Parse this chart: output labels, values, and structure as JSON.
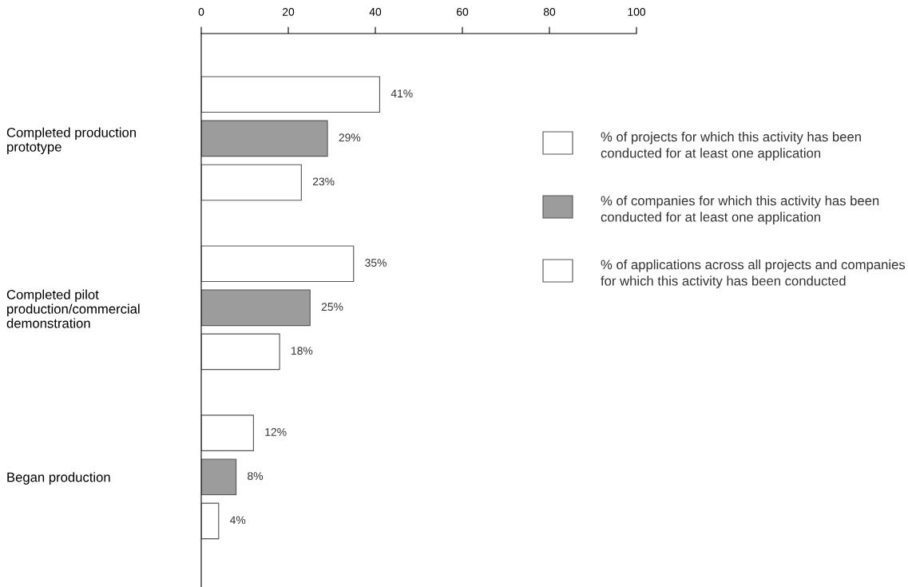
{
  "chart_data": {
    "type": "bar",
    "orientation": "horizontal",
    "categories": [
      "Completed production\nprototype",
      "Completed pilot\nproduction/commercial\ndemonstration",
      "Began production"
    ],
    "series": [
      {
        "name": "% of projects for which this activity has been conducted for at least one application",
        "color": "#ffffff",
        "values": [
          41,
          35,
          12
        ],
        "value_labels": [
          "41%",
          "35%",
          "12%"
        ]
      },
      {
        "name": "% of companies for which this activity has been conducted for at least one application",
        "color": "#9c9c9c",
        "values": [
          29,
          25,
          8
        ],
        "value_labels": [
          "29%",
          "25%",
          "8%"
        ]
      },
      {
        "name": "% of applications across all projects and companies for which this activity has been conducted",
        "color": "#ffffff",
        "values": [
          23,
          18,
          4
        ],
        "value_labels": [
          "23%",
          "18%",
          "4%"
        ]
      }
    ],
    "xlim": [
      0,
      100
    ],
    "xticks": [
      0,
      20,
      40,
      60,
      80,
      100
    ],
    "grid": false,
    "legend": "right"
  }
}
